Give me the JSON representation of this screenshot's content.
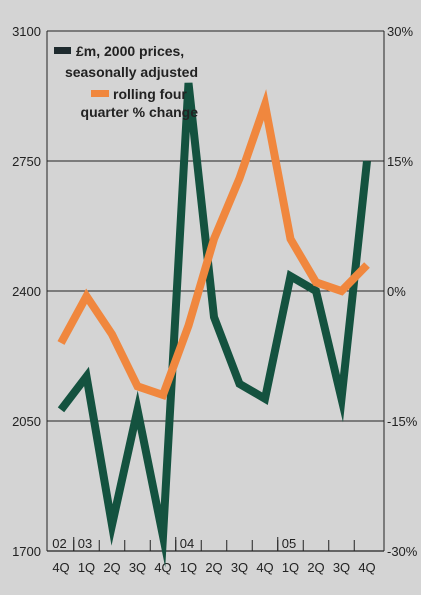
{
  "chart_data": {
    "type": "line",
    "categories": [
      "4Q",
      "1Q",
      "2Q",
      "3Q",
      "4Q",
      "1Q",
      "2Q",
      "3Q",
      "4Q",
      "1Q",
      "2Q",
      "3Q",
      "4Q"
    ],
    "year_labels": [
      {
        "label": "02",
        "start_index": 0
      },
      {
        "label": "03",
        "start_index": 1
      },
      {
        "label": "04",
        "start_index": 5
      },
      {
        "label": "05",
        "start_index": 9
      }
    ],
    "left_axis": {
      "ylim": [
        1700,
        3100
      ],
      "ticks": [
        "1700",
        "2050",
        "2400",
        "2750",
        "3100"
      ],
      "values": [
        1700,
        2050,
        2400,
        2750,
        3100
      ]
    },
    "right_axis": {
      "ylim": [
        -30,
        30
      ],
      "ticks": [
        "-30%",
        "-15%",
        "0%",
        "15%",
        "30%"
      ],
      "values": [
        -30,
        -15,
        0,
        15,
        30
      ]
    },
    "series": [
      {
        "name": "£m, 2000 prices, seasonally adjusted",
        "axis": "left",
        "color": "#14523f",
        "values": [
          2080,
          2170,
          1770,
          2080,
          1740,
          2960,
          2330,
          2150,
          2110,
          2440,
          2400,
          2110,
          2750
        ]
      },
      {
        "name": "rolling four quarter % change",
        "axis": "right",
        "color": "#f0873e",
        "values": [
          -6,
          -0.6,
          -5,
          -11,
          -12,
          -4,
          6,
          13,
          21.5,
          6,
          1,
          0,
          3
        ]
      }
    ],
    "legend": [
      {
        "label_line1": "£m, 2000 prices,",
        "label_line2": "seasonally adjusted",
        "swatch_color": "#1e2a2e"
      },
      {
        "label_line1": "rolling four",
        "label_line2": "quarter % change",
        "swatch_color": "#f0873e"
      }
    ],
    "legend_placement": "top-left",
    "grid": "horizontal"
  }
}
